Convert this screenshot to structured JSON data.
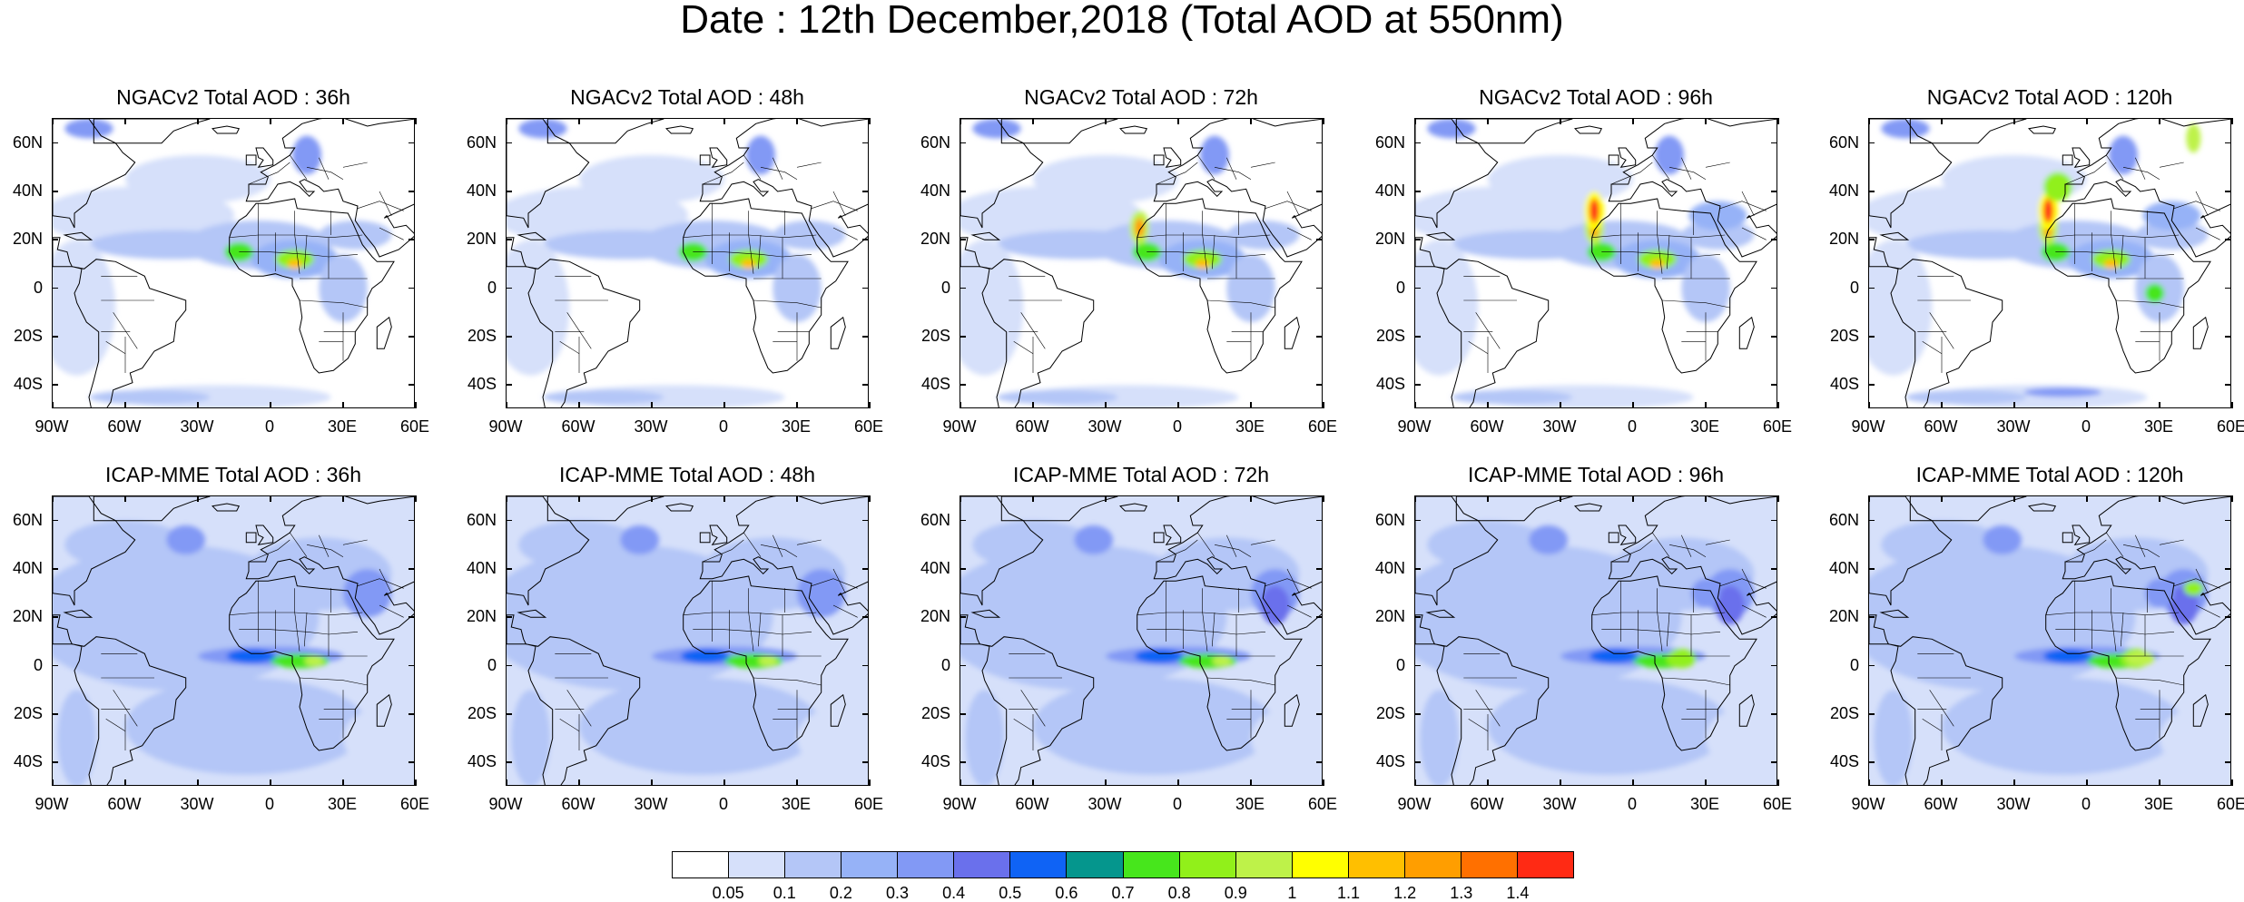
{
  "title": "Date : 12th December,2018 (Total AOD at 550nm)",
  "panels": [
    {
      "title": "NGACv2 Total AOD : 36h",
      "model": "ngac",
      "lead": 36
    },
    {
      "title": "NGACv2 Total AOD : 48h",
      "model": "ngac",
      "lead": 48
    },
    {
      "title": "NGACv2 Total AOD : 72h",
      "model": "ngac",
      "lead": 72
    },
    {
      "title": "NGACv2 Total AOD : 96h",
      "model": "ngac",
      "lead": 96
    },
    {
      "title": "NGACv2 Total AOD : 120h",
      "model": "ngac",
      "lead": 120
    },
    {
      "title": "ICAP-MME Total AOD : 36h",
      "model": "icap",
      "lead": 36
    },
    {
      "title": "ICAP-MME Total AOD : 48h",
      "model": "icap",
      "lead": 48
    },
    {
      "title": "ICAP-MME Total AOD : 72h",
      "model": "icap",
      "lead": 72
    },
    {
      "title": "ICAP-MME Total AOD : 96h",
      "model": "icap",
      "lead": 96
    },
    {
      "title": "ICAP-MME Total AOD : 120h",
      "model": "icap",
      "lead": 120
    }
  ],
  "map_extent": {
    "lon": [
      -90,
      60
    ],
    "lat": [
      -50,
      70
    ]
  },
  "y_ticks": [
    {
      "lat": 60,
      "label": "60N"
    },
    {
      "lat": 40,
      "label": "40N"
    },
    {
      "lat": 20,
      "label": "20N"
    },
    {
      "lat": 0,
      "label": "0"
    },
    {
      "lat": -20,
      "label": "20S"
    },
    {
      "lat": -40,
      "label": "40S"
    }
  ],
  "x_ticks": [
    {
      "lon": -90,
      "label": "90W"
    },
    {
      "lon": -60,
      "label": "60W"
    },
    {
      "lon": -30,
      "label": "30W"
    },
    {
      "lon": 0,
      "label": "0"
    },
    {
      "lon": 30,
      "label": "30E"
    },
    {
      "lon": 60,
      "label": "60E"
    }
  ],
  "colorbar": {
    "colors": [
      "#ffffff",
      "#d6e0fa",
      "#b4c6f7",
      "#96b2f7",
      "#8299f5",
      "#6a70ec",
      "#0f63f5",
      "#05968d",
      "#47e61c",
      "#91f01a",
      "#bef249",
      "#ffff00",
      "#ffbf00",
      "#ff9e00",
      "#ff7000",
      "#ff2a14"
    ],
    "labels": [
      "0.05",
      "0.1",
      "0.2",
      "0.3",
      "0.4",
      "0.5",
      "0.6",
      "0.7",
      "0.8",
      "0.9",
      "1",
      "1.1",
      "1.2",
      "1.3",
      "1.4"
    ]
  }
}
